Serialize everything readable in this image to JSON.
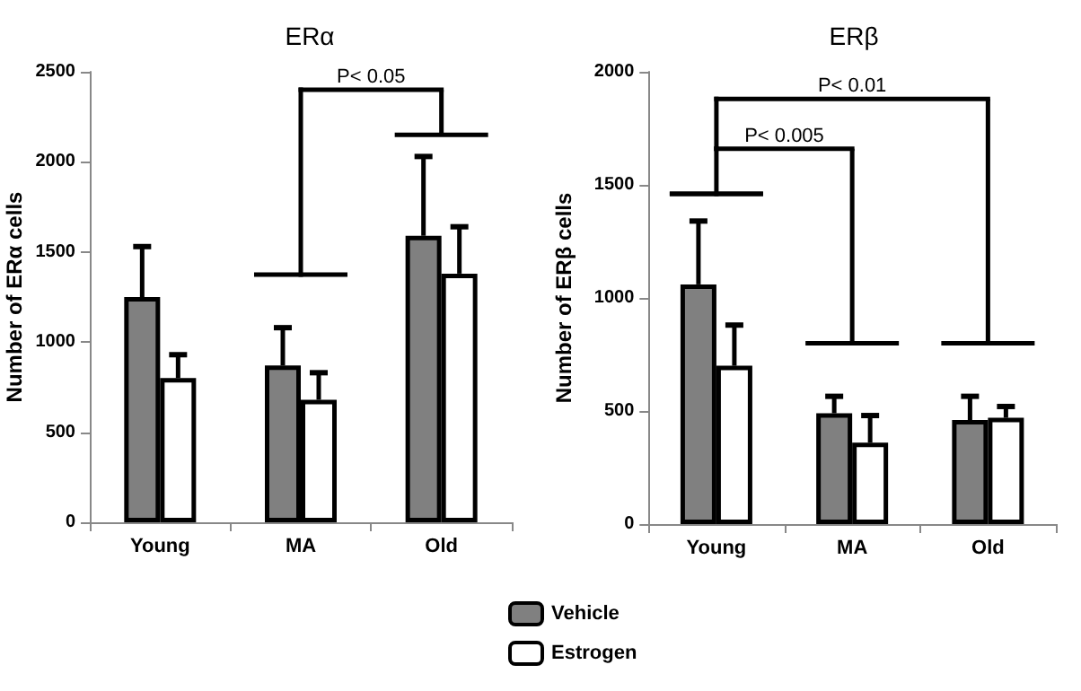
{
  "chart_data": [
    {
      "type": "bar",
      "title": "ERα",
      "ylabel": "Number of ERα cells",
      "categories": [
        "Young",
        "MA",
        "Old"
      ],
      "ylim": [
        0,
        2500
      ],
      "yticks": [
        0,
        500,
        1000,
        1500,
        2000,
        2500
      ],
      "grid": false,
      "legend": "bottom",
      "series": [
        {
          "name": "Vehicle",
          "color": "#808080",
          "values": [
            1250,
            870,
            1590
          ],
          "errors": [
            [
              1250,
              1530
            ],
            [
              870,
              1080
            ],
            [
              1590,
              2030
            ]
          ]
        },
        {
          "name": "Estrogen",
          "color": "#ffffff",
          "values": [
            800,
            680,
            1380
          ],
          "errors": [
            [
              800,
              930
            ],
            [
              680,
              830
            ],
            [
              1380,
              1640
            ]
          ]
        }
      ],
      "annotations": [
        "P< 0.05"
      ]
    },
    {
      "type": "bar",
      "title": "ERβ",
      "ylabel": "Number of ERβ cells",
      "categories": [
        "Young",
        "MA",
        "Old"
      ],
      "ylim": [
        0,
        2000
      ],
      "yticks": [
        0,
        500,
        1000,
        1500,
        2000
      ],
      "grid": false,
      "legend": false,
      "series": [
        {
          "color": "#808080",
          "values": [
            1060,
            490,
            460
          ],
          "errors": [
            [
              1060,
              1340
            ],
            [
              490,
              565
            ],
            [
              460,
              565
            ]
          ]
        },
        {
          "color": "#ffffff",
          "values": [
            700,
            360,
            470
          ],
          "errors": [
            [
              700,
              880
            ],
            [
              360,
              480
            ],
            [
              470,
              520
            ]
          ]
        }
      ],
      "annotations": [
        "P< 0.01",
        "P< 0.005"
      ]
    }
  ]
}
